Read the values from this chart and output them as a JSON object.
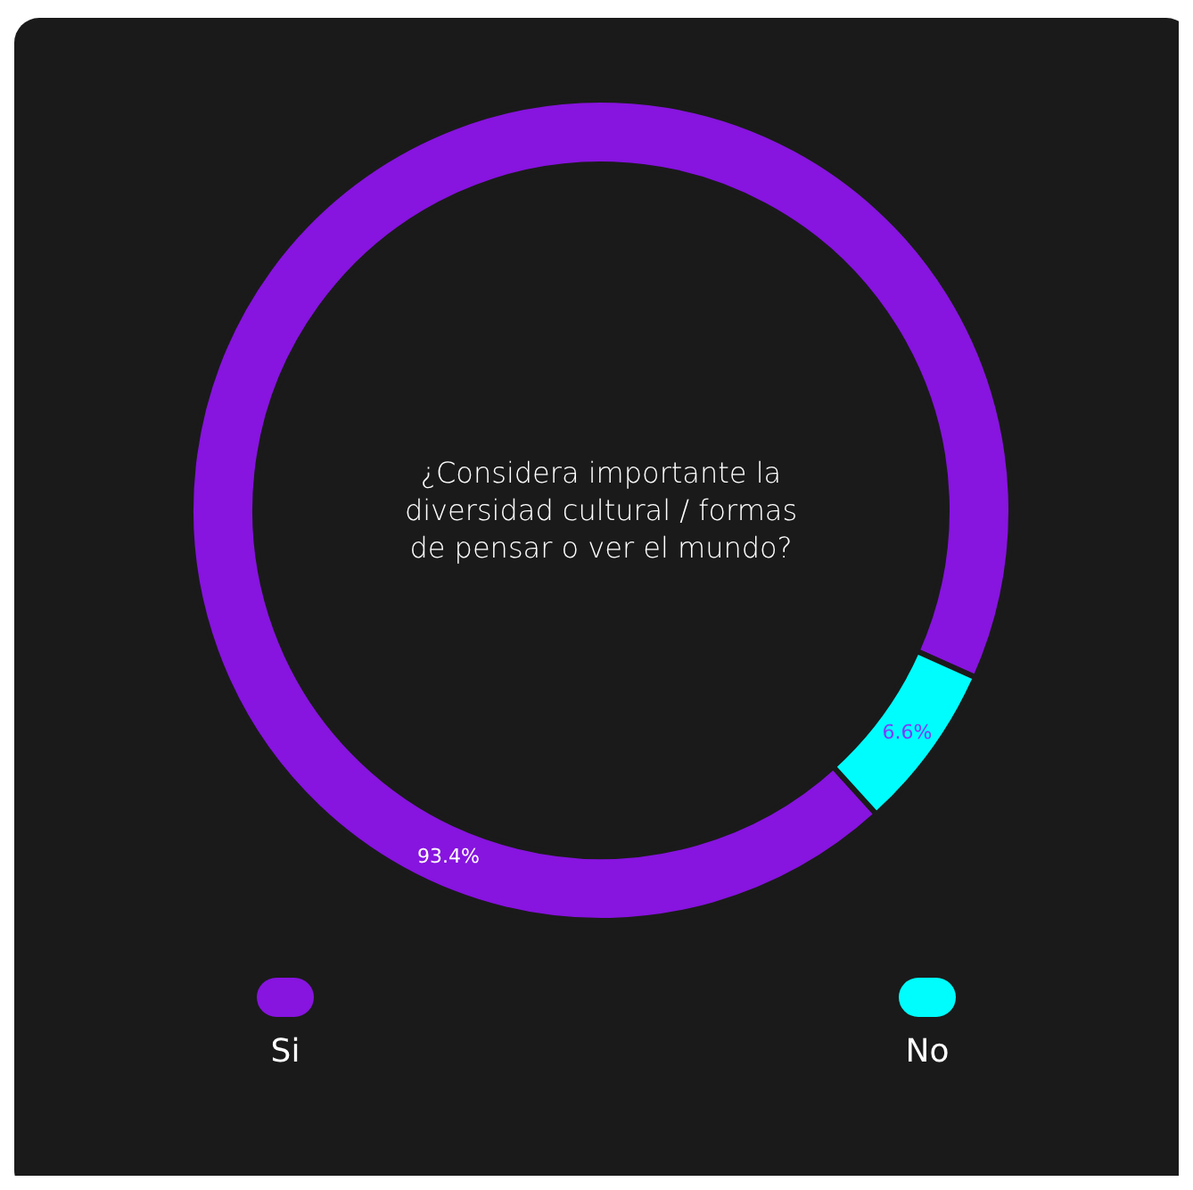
{
  "chart_data": {
    "type": "donut",
    "title": "¿Considera importante la diversidad cultural / formas de pensar o ver el mundo?",
    "categories": [
      "Si",
      "No"
    ],
    "values": [
      93.4,
      6.6
    ],
    "colors": [
      "#8714df",
      "#00fdfd"
    ],
    "value_labels": [
      "93.4%",
      "6.6%"
    ],
    "legend": "bottom"
  }
}
